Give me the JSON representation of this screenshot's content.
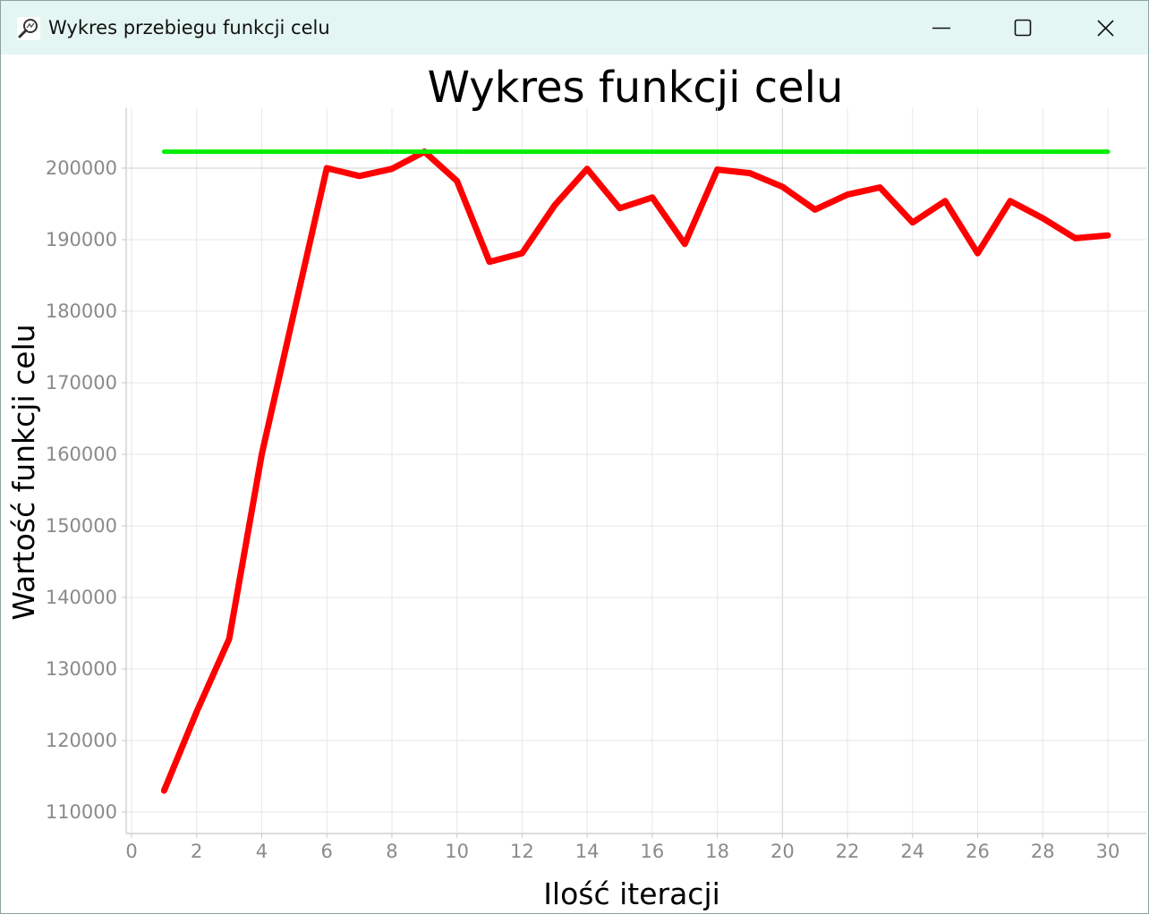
{
  "window": {
    "title": "Wykres przebiegu funkcji celu",
    "icon": "magnifier-chart-icon",
    "controls": {
      "minimize_icon": "minimize-icon",
      "maximize_icon": "maximize-icon",
      "close_icon": "close-icon"
    }
  },
  "colors": {
    "series_main": "#ff0000",
    "series_reference": "#00ee00",
    "grid": "#e6e6e6",
    "axis_line": "#c8c8c8",
    "tick_text": "#8a8a8a",
    "titlebar": "#e4f6f2"
  },
  "chart_data": {
    "type": "line",
    "title": "Wykres funkcji celu",
    "xlabel": "Ilość iteracji",
    "ylabel": "Wartość funkcji celu",
    "xlim": [
      0,
      30
    ],
    "ylim": [
      107500,
      210000
    ],
    "x_ticks": [
      0,
      2,
      4,
      6,
      8,
      10,
      12,
      14,
      16,
      18,
      20,
      22,
      24,
      26,
      28,
      30
    ],
    "y_ticks": [
      110000,
      120000,
      130000,
      140000,
      150000,
      160000,
      170000,
      180000,
      190000,
      200000
    ],
    "grid": true,
    "legend": "none",
    "series": [
      {
        "color": "#ff0000",
        "x": [
          1,
          2,
          3,
          4,
          5,
          6,
          7,
          8,
          9,
          10,
          11,
          12,
          13,
          14,
          15,
          16,
          17,
          18,
          19,
          20,
          21,
          22,
          23,
          24,
          25,
          26,
          27,
          28,
          29,
          30
        ],
        "y": [
          113000,
          124000,
          134200,
          160000,
          180000,
          200000,
          198900,
          199900,
          202300,
          198200,
          186900,
          188100,
          194800,
          199900,
          194400,
          195900,
          189400,
          199800,
          199300,
          197400,
          194200,
          196300,
          197300,
          192400,
          195400,
          188100,
          195400,
          193000,
          190200,
          190600
        ]
      },
      {
        "color": "#00ee00",
        "x": [
          1,
          30
        ],
        "y": [
          202300,
          202300
        ]
      }
    ]
  }
}
